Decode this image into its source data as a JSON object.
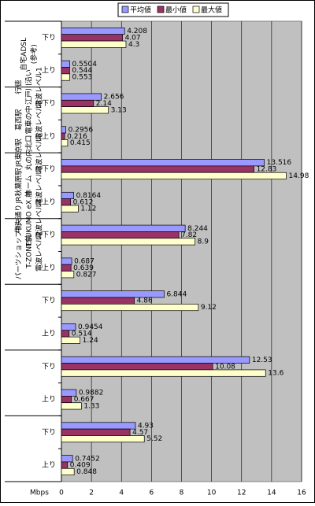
{
  "chart_data": {
    "type": "bar",
    "orientation": "horizontal",
    "groups": [
      {
        "lines": [
          "自宅ADSL",
          "(参考)"
        ]
      },
      {
        "lines": [
          "行徳",
          "江戸川沿い",
          "電波レベル1"
        ]
      },
      {
        "lines": [
          "葛西駅",
          "電車の中",
          "電波レベル3"
        ]
      },
      {
        "lines": [
          "JR東京駅",
          "丸の内北口",
          "電波レベル5"
        ]
      },
      {
        "lines": [
          "JR秋葉原駅",
          "ホーム",
          "電波レベル3"
        ]
      },
      {
        "lines": [
          "中央通り",
          "TSUKUMO eX.前",
          "電波レベル4"
        ]
      },
      {
        "lines": [
          "パーツショップ街",
          "T-ZONE前",
          "電波レベル2"
        ]
      }
    ],
    "categories": [
      "下り",
      "上り",
      "下り",
      "上り",
      "下り",
      "上り",
      "下り",
      "上り",
      "下り",
      "上り",
      "下り",
      "上り",
      "下り",
      "上り"
    ],
    "series": [
      {
        "name": "平均値",
        "color": "#9999ff",
        "values": [
          4.208,
          0.5504,
          2.656,
          0.2956,
          13.516,
          0.8164,
          8.244,
          0.687,
          6.844,
          0.9454,
          12.53,
          0.9882,
          4.93,
          0.7452
        ]
      },
      {
        "name": "最小値",
        "color": "#993366",
        "values": [
          4.07,
          0.544,
          2.14,
          0.216,
          12.83,
          0.612,
          7.82,
          0.639,
          4.86,
          0.514,
          10.08,
          0.667,
          4.57,
          0.409
        ]
      },
      {
        "name": "最大値",
        "color": "#ffffcc",
        "values": [
          4.3,
          0.553,
          3.13,
          0.415,
          14.98,
          1.12,
          8.9,
          0.827,
          9.12,
          1.24,
          13.6,
          1.33,
          5.52,
          0.848
        ]
      }
    ],
    "x_label": "Mbps",
    "xlim": [
      0,
      16
    ],
    "xticks": [
      0,
      2,
      4,
      6,
      8,
      10,
      12,
      14,
      16
    ],
    "grid": true,
    "legend_position": "top"
  }
}
